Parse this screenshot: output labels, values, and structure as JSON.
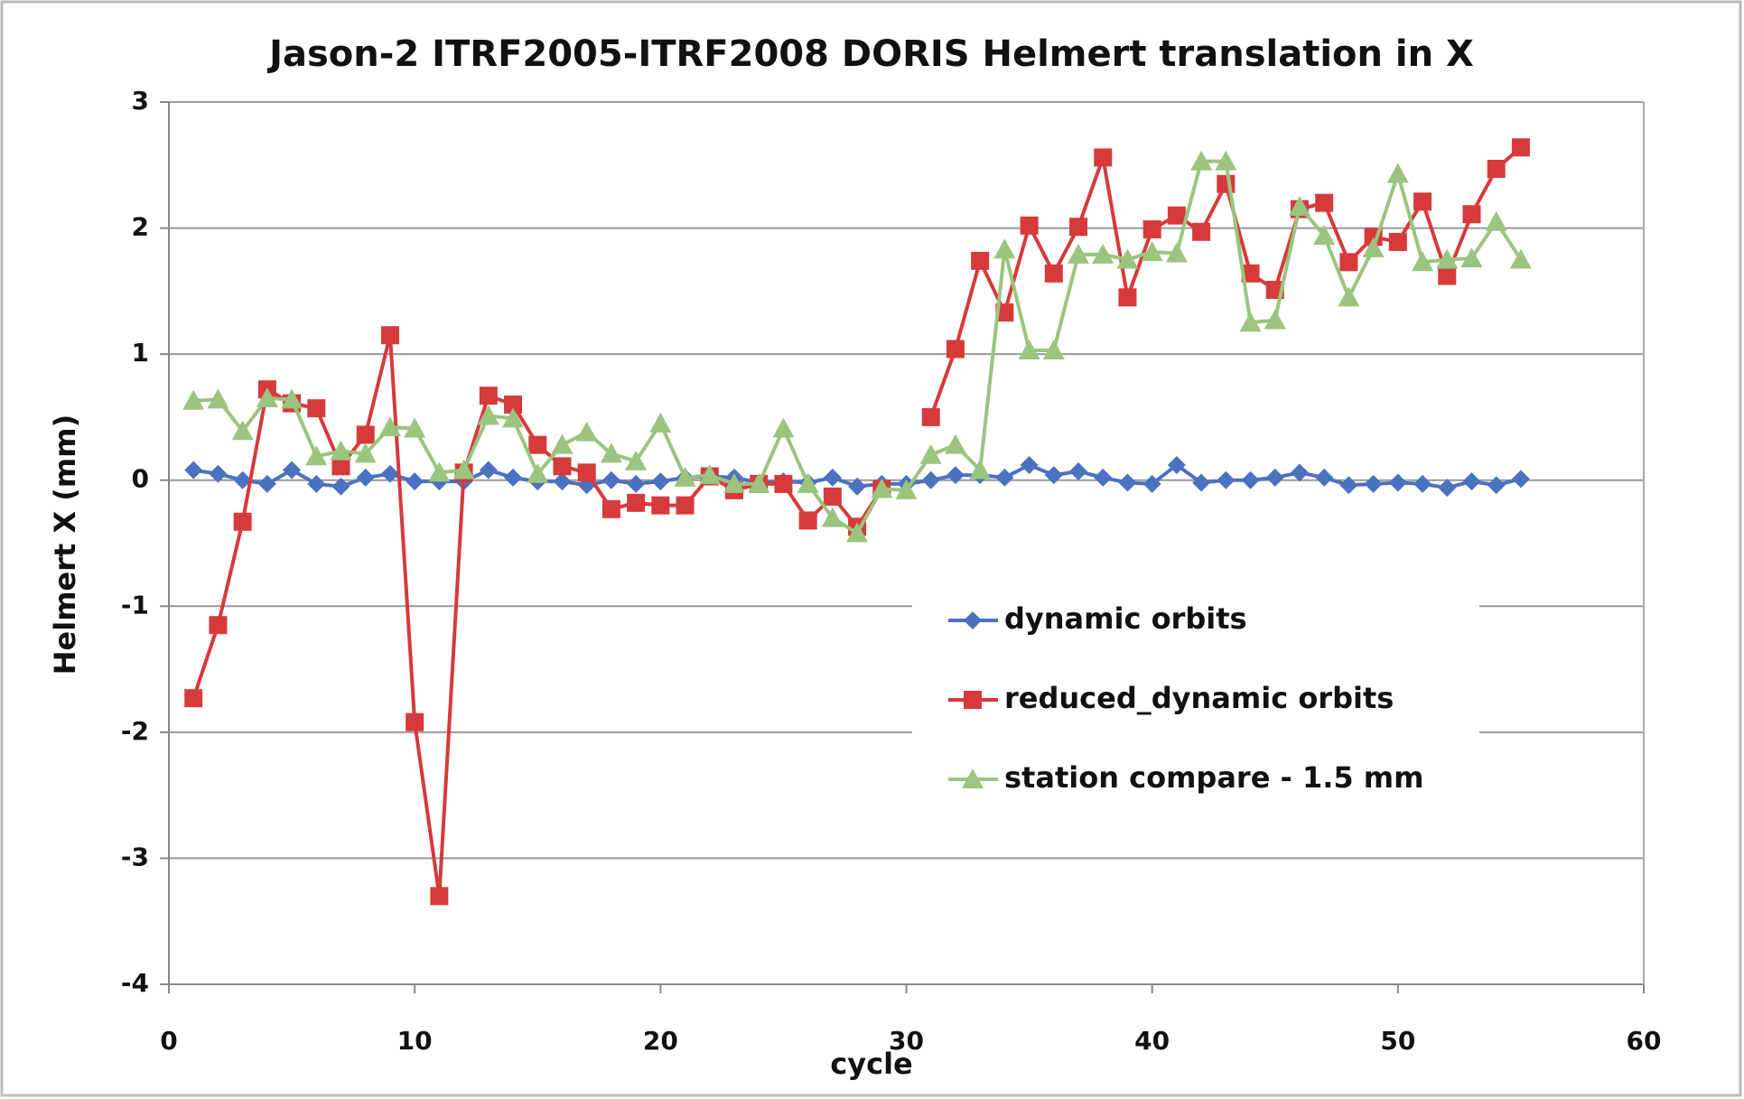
{
  "chart_data": {
    "type": "line",
    "title": "Jason-2 ITRF2005-ITRF2008 DORIS Helmert translation in X",
    "x_label": "cycle",
    "y_label": "Helmert X (mm)",
    "x": [
      1,
      2,
      3,
      4,
      5,
      6,
      7,
      8,
      9,
      10,
      11,
      12,
      13,
      14,
      15,
      16,
      17,
      18,
      19,
      20,
      21,
      22,
      23,
      24,
      25,
      26,
      27,
      28,
      29,
      30,
      31,
      32,
      33,
      34,
      35,
      36,
      37,
      38,
      39,
      40,
      41,
      42,
      43,
      44,
      45,
      46,
      47,
      48,
      49,
      50,
      51,
      52,
      53,
      54,
      55
    ],
    "series": [
      {
        "name": "dynamic orbits",
        "color": "#4a72c0",
        "marker": "diamond",
        "values": [
          0.08,
          0.05,
          0,
          -0.03,
          0.08,
          -0.03,
          -0.05,
          0.02,
          0.05,
          -0.01,
          -0.01,
          -0.01,
          0.08,
          0.02,
          -0.01,
          -0.01,
          -0.04,
          0,
          -0.03,
          -0.01,
          0.02,
          0.03,
          0.02,
          -0.02,
          -0.01,
          -0.02,
          0.02,
          -0.05,
          -0.03,
          -0.03,
          0,
          0.04,
          0.04,
          0.02,
          0.12,
          0.04,
          0.07,
          0.02,
          -0.02,
          -0.03,
          0.12,
          -0.02,
          0,
          0,
          0.02,
          0.06,
          0.02,
          -0.04,
          -0.03,
          -0.02,
          -0.03,
          -0.06,
          -0.01,
          -0.04,
          0.01
        ]
      },
      {
        "name": "reduced_dynamic orbits",
        "color": "#d63a3a",
        "marker": "square",
        "values": [
          -1.73,
          -1.15,
          -0.33,
          0.72,
          0.61,
          0.57,
          0.11,
          0.36,
          1.15,
          -1.92,
          -3.3,
          0.06,
          0.67,
          0.6,
          0.28,
          0.11,
          0.06,
          -0.23,
          -0.18,
          -0.2,
          -0.2,
          0.03,
          -0.08,
          -0.03,
          -0.03,
          -0.32,
          -0.13,
          -0.37,
          -0.07,
          null,
          0.5,
          1.04,
          1.74,
          1.33,
          2.02,
          1.64,
          2.01,
          2.56,
          1.45,
          1.99,
          2.1,
          1.97,
          2.35,
          1.64,
          1.51,
          2.15,
          2.2,
          1.73,
          1.93,
          1.89,
          2.21,
          1.62,
          2.11,
          2.47,
          2.64
        ]
      },
      {
        "name": "station compare - 1.5 mm",
        "color": "#9bc47e",
        "marker": "triangle",
        "values": [
          0.63,
          0.64,
          0.39,
          0.65,
          0.64,
          0.19,
          0.23,
          0.21,
          0.42,
          0.41,
          0.06,
          0.08,
          0.51,
          0.49,
          0.05,
          0.28,
          0.38,
          0.21,
          0.15,
          0.45,
          0.02,
          0.04,
          -0.03,
          -0.03,
          0.41,
          -0.03,
          -0.3,
          -0.42,
          -0.07,
          -0.08,
          0.2,
          0.28,
          0.08,
          1.83,
          1.03,
          1.03,
          1.79,
          1.79,
          1.75,
          1.81,
          1.8,
          2.53,
          2.53,
          1.25,
          1.27,
          2.17,
          1.94,
          1.45,
          1.84,
          2.43,
          1.73,
          1.75,
          1.76,
          2.05,
          1.75
        ]
      }
    ],
    "xlim": [
      0,
      60
    ],
    "xticks": [
      0,
      10,
      20,
      30,
      40,
      50,
      60
    ],
    "ylim": [
      -4,
      3
    ],
    "yticks": [
      -4,
      -3,
      -2,
      -1,
      0,
      1,
      2,
      3
    ],
    "grid": true
  }
}
